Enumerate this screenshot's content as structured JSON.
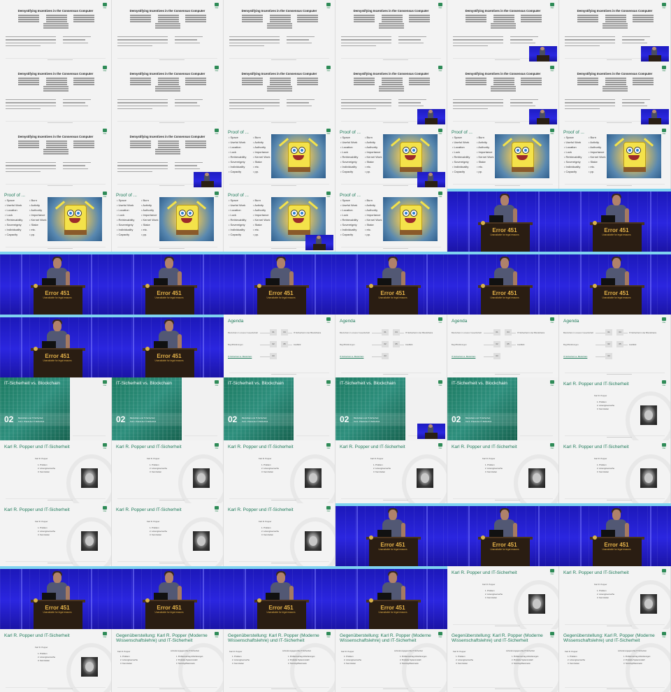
{
  "title_slide": {
    "title": "Demystifying Incentives in the Consensus Computer"
  },
  "proof_slide": {
    "title": "Proof of ...",
    "col1": [
      "Space",
      "Useful Work",
      "Location",
      "Luck",
      "Retrievability",
      "Sovereignty",
      "Individuality",
      "Capacity"
    ],
    "col1_alt": [
      "Space",
      "Useful Work",
      "Location",
      "Luck",
      "Retrievability",
      "Sovereignty",
      "Individuality",
      "Capacity"
    ],
    "col2": [
      "Burn",
      "Activity",
      "Authority",
      "Importance",
      "Kernel Work",
      "Stake",
      "etc.",
      "pp."
    ]
  },
  "agenda": {
    "title": "Agenda",
    "rows": [
      "Blockchain in unserer Gesellschaft",
      "Begriffsklärungen",
      "IT-Sicherheit vs. Blockchain"
    ],
    "boxes": [
      "01",
      "04",
      "02",
      "05",
      "03"
    ],
    "labels": [
      "IT-Sicherheit in der Blockchains",
      "Ausblick"
    ]
  },
  "it_section": {
    "title": "IT-Sicherheit vs. Blockchain",
    "number": "02",
    "sub1": "Blockchain und IT-Sicherheit",
    "sub2": "Teil 1: Praxis der IT-Sicherheit"
  },
  "popper_slide": {
    "title": "Karl R. Popper und IT-Sicherheit",
    "name": "Karl R. Popper",
    "items": [
      "1. Problem",
      "2. Lösungsversuche",
      "3. Kennzeiten"
    ]
  },
  "compare_slide": {
    "title": "Gegenüberstellung: Karl R. Popper (Moderne Wissenschaftslehre) und IT-Sicherheit",
    "header": "Anforderungsgerechte IT-Sicherheit",
    "items": [
      "1. Problemvertrag Anforderungen",
      "2. Produkte Systemmodell",
      "3. Test Angriffsszenario"
    ]
  },
  "stage": {
    "sign_big": "Error 451",
    "sign_small": "Unavailable for legal reasons"
  },
  "colors": {
    "accent": "#1f7a5a",
    "stage_blue": "#2a27e0",
    "slide_bg": "#f3f3f3"
  },
  "tiles": [
    "title",
    "title",
    "title",
    "title",
    "title-pip",
    "title-pip",
    "title",
    "title",
    "title",
    "title-pip",
    "title-pip",
    "title-pip",
    "title",
    "title-pip",
    "proof",
    "proof-pip",
    "proof",
    "proof",
    "proof",
    "proof",
    "proof-pip",
    "proof",
    "video",
    "video",
    "video",
    "video",
    "video",
    "video",
    "video",
    "video",
    "video",
    "video",
    "agenda",
    "agenda",
    "agenda",
    "agenda",
    "it",
    "it",
    "it",
    "it-pip",
    "it",
    "popper",
    "popper",
    "popper",
    "popper",
    "popper",
    "popper",
    "popper",
    "popper",
    "popper",
    "popper",
    "video",
    "video",
    "video",
    "video",
    "video",
    "video",
    "video",
    "popper",
    "popper",
    "popper",
    "compare",
    "compare",
    "compare",
    "compare",
    "compare"
  ]
}
